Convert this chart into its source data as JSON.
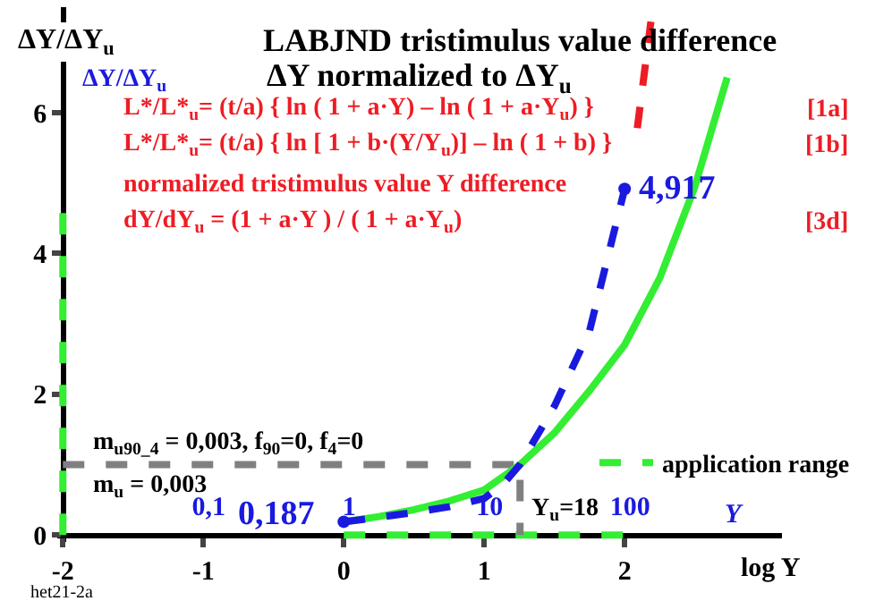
{
  "chart_data": {
    "type": "line",
    "title": "LABJND tristimulus value difference",
    "subtitle": "ΔY normalized to ΔY$_{u}$",
    "xlabel": "log Y",
    "ylabel": "ΔY/ΔY$_{u}$",
    "x2label": "Y",
    "xlim": [
      -2.04,
      3.12
    ],
    "ylim": [
      -0.1,
      7.5
    ],
    "xticks": [
      -2,
      -1,
      0,
      1,
      2
    ],
    "yticks": [
      0,
      2,
      4,
      6
    ],
    "x2lim": [
      0.00912,
      1318
    ],
    "x2ticks": [
      {
        "value": 0.1,
        "label": "0,1"
      },
      1,
      10,
      100
    ],
    "log": "x2",
    "grid": false,
    "legend": "bottom right",
    "series": [
      {
        "name": "application range",
        "color": "#33ee33",
        "line_style": "dashed",
        "marker": "none",
        "x": [
          0,
          2
        ],
        "values": [
          0,
          0
        ]
      },
      {
        "color": "#33ee33",
        "line_style": "dashed",
        "marker": "none",
        "x": [
          -2,
          -2
        ],
        "values": [
          0,
          4.6
        ]
      },
      {
        "color": "#808080",
        "line_style": "dashed",
        "marker": "none",
        "x": [
          -2,
          1.255,
          1.255
        ],
        "values": [
          1,
          1,
          0
        ]
      },
      {
        "color": "#33ee33",
        "line_style": "solid",
        "marker": "none",
        "x": [
          0,
          0.25,
          0.5,
          0.75,
          1,
          1.255,
          1.5,
          1.75,
          2,
          2.25,
          2.5,
          2.73
        ],
        "values": [
          0.187,
          0.26,
          0.36,
          0.48,
          0.64,
          1.0,
          1.45,
          2.05,
          2.7,
          3.65,
          4.95,
          6.5
        ]
      },
      {
        "color": "#1a1adf",
        "line_style": "dashed",
        "marker": "none",
        "x": [
          0,
          0.25,
          0.5,
          0.75,
          1,
          1.125,
          1.255,
          1.5,
          1.75,
          2
        ],
        "values": [
          0.187,
          0.25,
          0.32,
          0.4,
          0.52,
          0.7,
          1.0,
          1.83,
          2.9,
          4.917
        ]
      },
      {
        "color": "#ee1c24",
        "line_style": "dashed",
        "marker": "none",
        "x": [
          2.09,
          2.2
        ],
        "values": [
          5.78,
          7.5
        ]
      },
      {
        "type": "scatter",
        "color": "#1a1adf",
        "marker": "circle",
        "x": [
          0,
          2
        ],
        "values": [
          0.187,
          4.917
        ]
      }
    ],
    "annotations": [
      "L*/L*$_{u}$= (t/a) { ln ( 1 + a·Y) – ln ( 1 + a·Y$_{u}$) }",
      "[1a]",
      "L*/L*$_{u}$= (t/a) { ln [ 1 + b·(Y/Y$_{u}$)] – ln ( 1 + b) }",
      "[1b]",
      "normalized tristimulus value Y difference",
      "dY/dY$_{u}$ = (1 + a·Y ) / ( 1 + a·Y$_{u}$)",
      "[3d]",
      "m$_{u90_4}$ = 0,003, f$_{90}$=0, f$_{4}$=0",
      "m$_{u}$ = 0,003",
      "ΔY/ΔY$_{u}$",
      "het21-2a",
      {
        "text": "0,187",
        "x": 0,
        "y": 0.187
      },
      {
        "text": "4,917",
        "x": 2,
        "y": 4.917
      },
      {
        "text": "Y$_{u}$=18",
        "x": 1.255,
        "y": 0
      }
    ]
  }
}
